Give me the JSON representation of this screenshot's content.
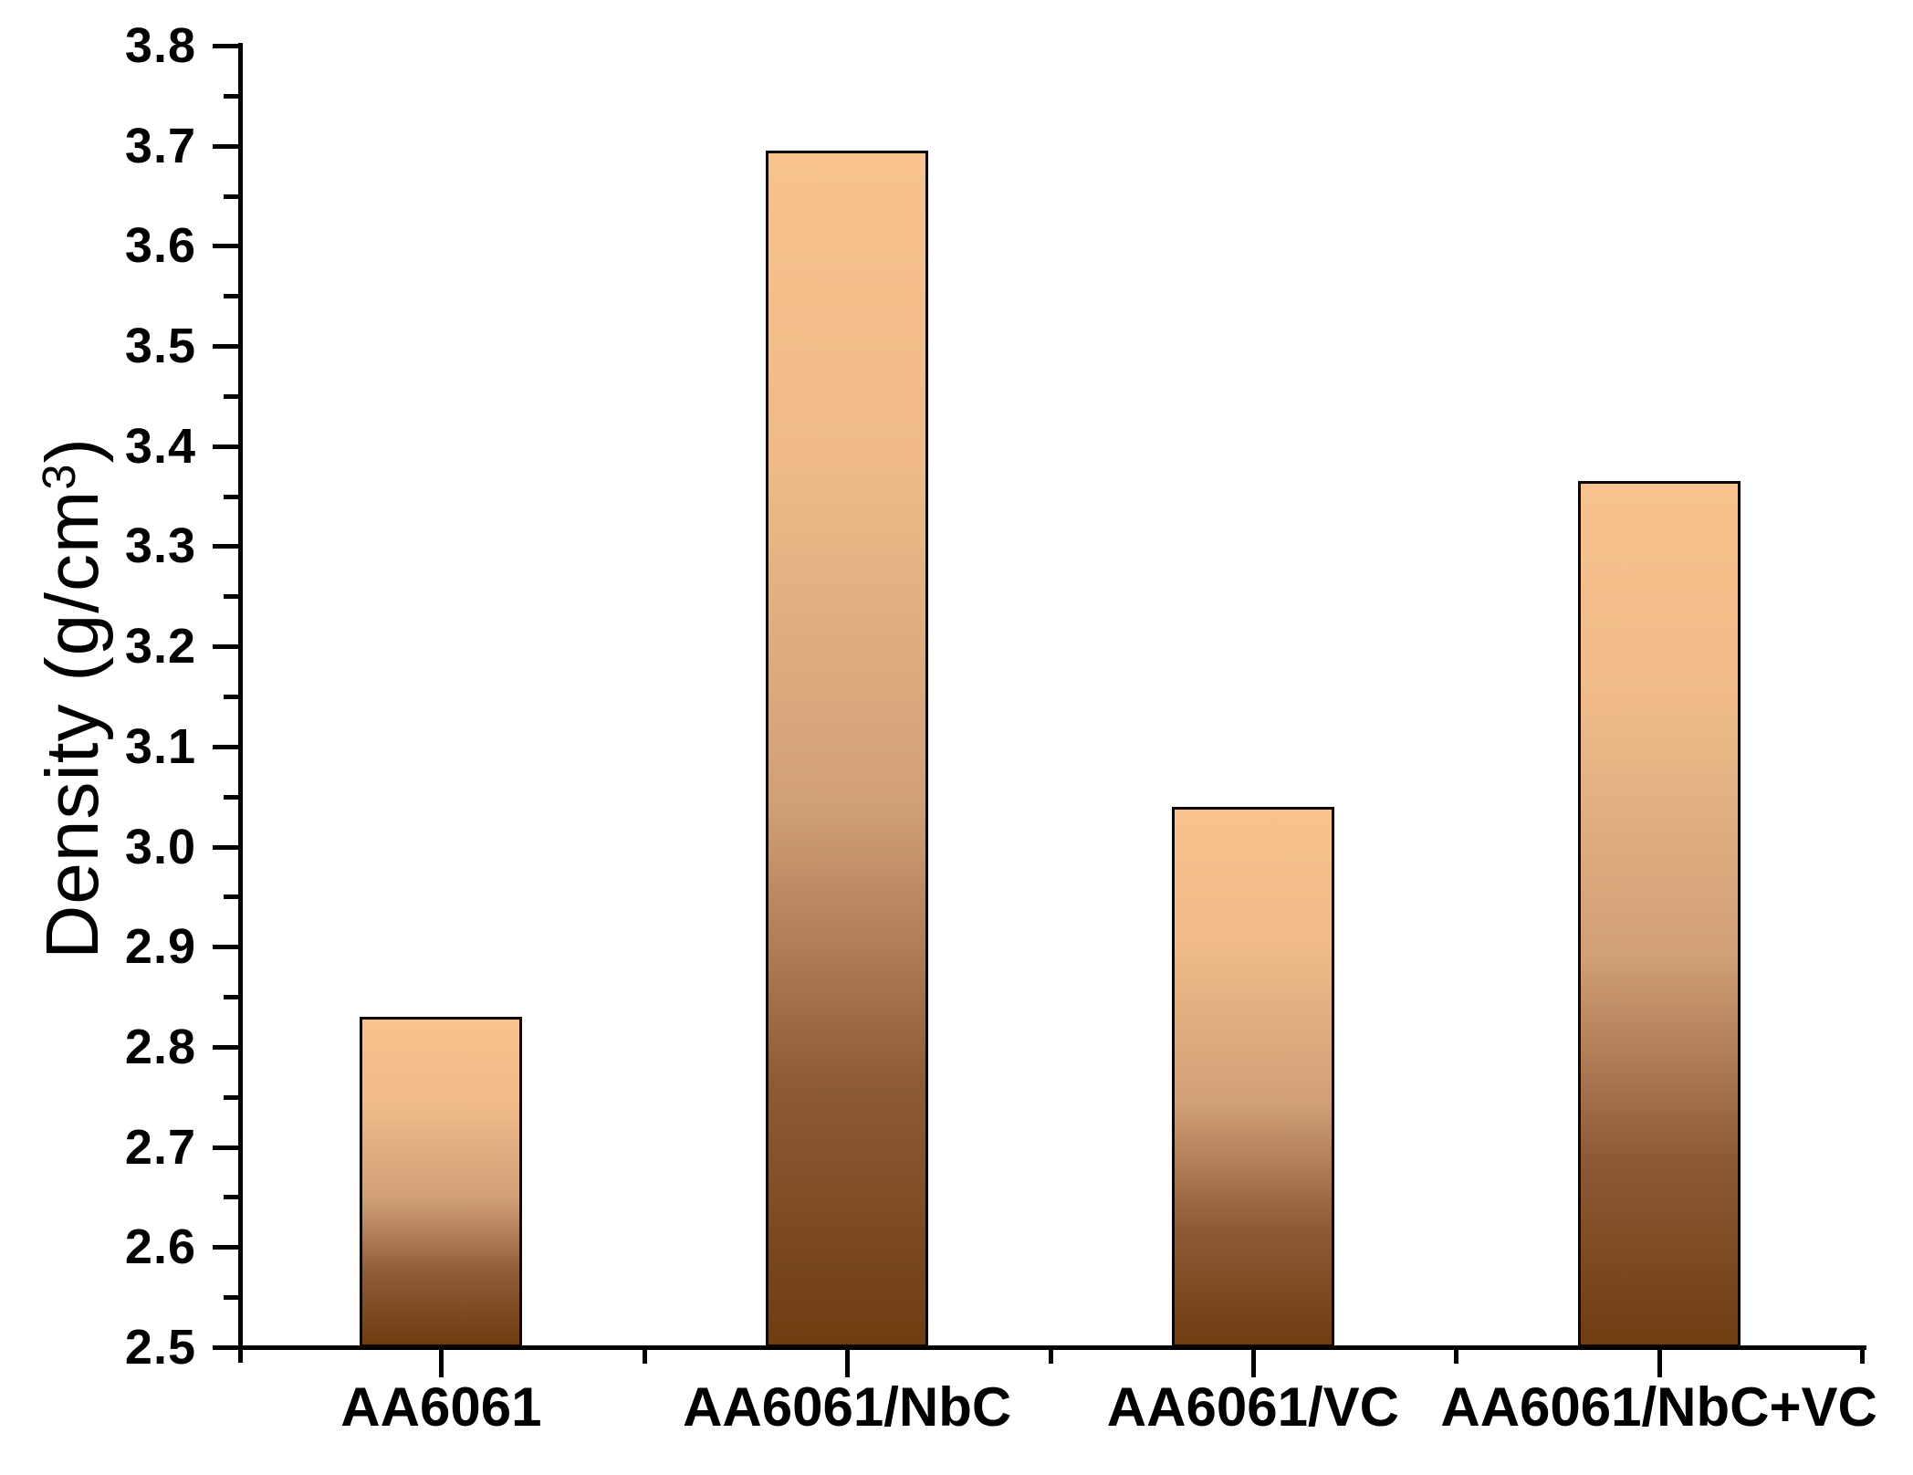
{
  "figure": {
    "kind": "scientific-bar-figure",
    "background": "#ffffff"
  },
  "chart_data": {
    "type": "bar",
    "title": "",
    "xlabel": "",
    "ylabel": "Density (g/cm³)",
    "ylabel_parts": {
      "prefix": "Density (g/cm",
      "sup": "3",
      "suffix": ")"
    },
    "categories": [
      "AA6061",
      "AA6061/NbC",
      "AA6061/VC",
      "AA6061/NbC+VC"
    ],
    "values": [
      2.83,
      3.695,
      3.04,
      3.365
    ],
    "ylim": [
      2.5,
      3.8
    ],
    "ytick_step": 0.1,
    "yminor_step": 0.05,
    "ytick_labels": [
      "2.5",
      "2.6",
      "2.7",
      "2.8",
      "2.9",
      "3.0",
      "3.1",
      "3.2",
      "3.3",
      "3.4",
      "3.5",
      "3.6",
      "3.7",
      "3.8"
    ],
    "grid": false,
    "legend": null,
    "axis_color": "#000000",
    "tick_style": {
      "y_major_len": 28,
      "y_minor_len": 16,
      "x_center_len": 30,
      "x_boundary_len": 15,
      "thickness": 5
    },
    "bar_style": {
      "border_color": "#0d0600",
      "gradient_direction": "top-light-to-bottom-dark",
      "gradient_stops": [
        {
          "pos": 0.0,
          "color": "#F7C28D"
        },
        {
          "pos": 0.25,
          "color": "#F0BB89"
        },
        {
          "pos": 0.55,
          "color": "#D19F76"
        },
        {
          "pos": 0.78,
          "color": "#8E5B37"
        },
        {
          "pos": 1.0,
          "color": "#6F3D10"
        }
      ]
    }
  }
}
